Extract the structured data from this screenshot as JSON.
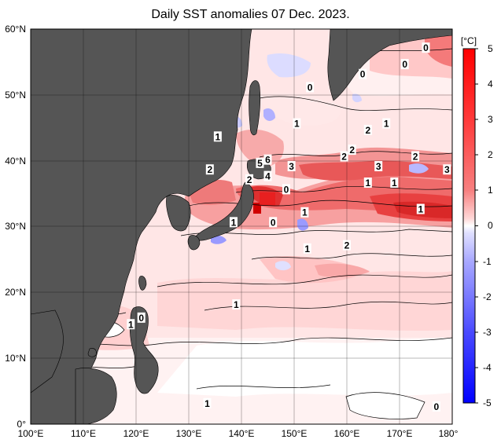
{
  "title": "Daily SST anomalies 07 Dec. 2023.",
  "lat_labels": [
    "60°N",
    "50°N",
    "40°N",
    "30°N",
    "20°N",
    "10°N",
    "0°"
  ],
  "lon_labels": [
    "100°E",
    "110°E",
    "120°E",
    "130°E",
    "140°E",
    "150°E",
    "160°E",
    "170°E",
    "180°"
  ],
  "colorbar": {
    "unit": "[°C]",
    "ticks": [
      "5",
      "4",
      "3",
      "2",
      "1",
      "0",
      "-1",
      "-2",
      "-3",
      "-4",
      "-5"
    ],
    "top_color": "#ff0000",
    "bottom_color": "#0000ff"
  },
  "colors": {
    "land": "#555555",
    "grid": "#000000",
    "pos_light": "#ffdcdc",
    "pos_mid": "#f79292",
    "pos_high": "#e83232",
    "neg_light": "#d8d8ff"
  },
  "contour_labels": [
    {
      "text": "0",
      "lon": 175,
      "lat": 57
    },
    {
      "text": "0",
      "lon": 171,
      "lat": 54.5
    },
    {
      "text": "0",
      "lon": 163,
      "lat": 53
    },
    {
      "text": "0",
      "lon": 153,
      "lat": 51
    },
    {
      "text": "1",
      "lon": 150.5,
      "lat": 45.5
    },
    {
      "text": "2",
      "lon": 164,
      "lat": 44.5
    },
    {
      "text": "1",
      "lon": 167.5,
      "lat": 45.5
    },
    {
      "text": "1",
      "lon": 135.5,
      "lat": 43.5
    },
    {
      "text": "5",
      "lon": 143.5,
      "lat": 39.5
    },
    {
      "text": "6",
      "lon": 145,
      "lat": 40
    },
    {
      "text": "4",
      "lon": 145,
      "lat": 37.5
    },
    {
      "text": "3",
      "lon": 149.5,
      "lat": 39
    },
    {
      "text": "2",
      "lon": 159.5,
      "lat": 40.5
    },
    {
      "text": "2",
      "lon": 161,
      "lat": 41.5
    },
    {
      "text": "3",
      "lon": 166,
      "lat": 39
    },
    {
      "text": "2",
      "lon": 173,
      "lat": 40.5
    },
    {
      "text": "3",
      "lon": 179,
      "lat": 38.5
    },
    {
      "text": "2",
      "lon": 134,
      "lat": 38.5
    },
    {
      "text": "2",
      "lon": 141.5,
      "lat": 37
    },
    {
      "text": "0",
      "lon": 148.5,
      "lat": 35.5
    },
    {
      "text": "1",
      "lon": 164,
      "lat": 36.5
    },
    {
      "text": "1",
      "lon": 169,
      "lat": 36.5
    },
    {
      "text": "1",
      "lon": 152,
      "lat": 32
    },
    {
      "text": "1",
      "lon": 174,
      "lat": 32.5
    },
    {
      "text": "1",
      "lon": 138.5,
      "lat": 30.5
    },
    {
      "text": "0",
      "lon": 146,
      "lat": 30.5
    },
    {
      "text": "1",
      "lon": 152.5,
      "lat": 26.5
    },
    {
      "text": "2",
      "lon": 160,
      "lat": 27
    },
    {
      "text": "1",
      "lon": 139,
      "lat": 18
    },
    {
      "text": "1",
      "lon": 119,
      "lat": 15
    },
    {
      "text": "0",
      "lon": 121,
      "lat": 16
    },
    {
      "text": "1",
      "lon": 133.5,
      "lat": 3
    },
    {
      "text": "0",
      "lon": 177,
      "lat": 2.5
    }
  ]
}
